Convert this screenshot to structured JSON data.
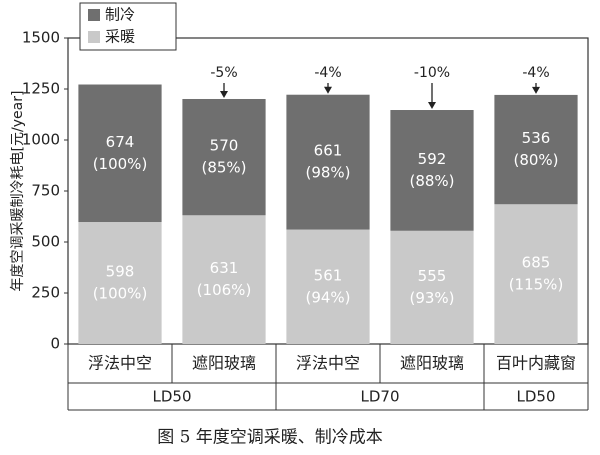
{
  "chart_data": {
    "type": "stacked-bar",
    "ylabel": "年度空调采暖制冷耗电[元/year]",
    "caption": "图 5 年度空调采暖、制冷成本",
    "categories": [
      "浮法中空",
      "遮阳玻璃",
      "浮法中空",
      "遮阳玻璃",
      "百叶内藏窗"
    ],
    "group_labels": [
      "LD50",
      null,
      "LD70",
      null,
      "LD50"
    ],
    "series": [
      {
        "name": "采暖",
        "color": "#c9c9c9",
        "values": [
          598,
          631,
          561,
          555,
          685
        ],
        "shares": [
          "(100%)",
          "(106%)",
          "(94%)",
          "(93%)",
          "(115%)"
        ]
      },
      {
        "name": "制冷",
        "color": "#6f6f6f",
        "values": [
          674,
          570,
          661,
          592,
          536
        ],
        "shares": [
          "(100%)",
          "(85%)",
          "(98%)",
          "(88%)",
          "(80%)"
        ]
      }
    ],
    "changes": [
      null,
      "-5%",
      "-4%",
      "-10%",
      "-4%"
    ],
    "ylim": [
      0,
      1500
    ],
    "yticks": [
      0,
      250,
      500,
      750,
      1000,
      1250,
      1500
    ]
  }
}
